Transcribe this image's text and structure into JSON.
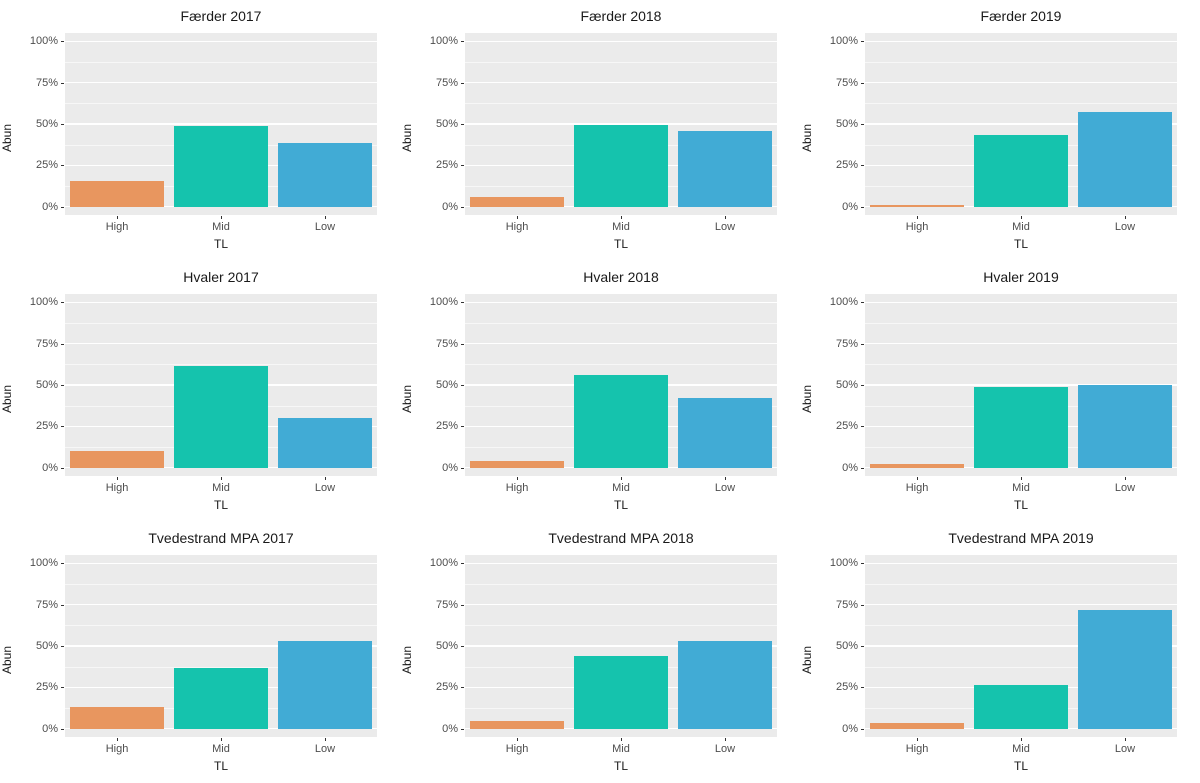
{
  "chart_data": {
    "type": "bar",
    "layout": "3x3 grid of small multiples",
    "categories": [
      "High",
      "Mid",
      "Low"
    ],
    "xlabel": "TL",
    "ylabel": "Abun",
    "ylim": [
      0,
      100
    ],
    "ytick_labels": [
      "0%",
      "25%",
      "50%",
      "75%",
      "100%"
    ],
    "ytick_values": [
      0,
      25,
      50,
      75,
      100
    ],
    "minor_gridline_values": [
      12.5,
      37.5,
      62.5,
      87.5
    ],
    "grid": "on",
    "legend": "none",
    "bar_colors": [
      "#E8965F",
      "#15C3AD",
      "#41ABD5"
    ],
    "panel_background": "#EBEBEB",
    "gridline_color": "#FFFFFF",
    "axis_text_color": "#4D4D4D",
    "title_color": "#1A1A1A",
    "panels": [
      {
        "title": "Færder 2017",
        "values": [
          15.5,
          48.5,
          38.5
        ]
      },
      {
        "title": "Færder 2018",
        "values": [
          6,
          49.5,
          46
        ]
      },
      {
        "title": "Færder 2019",
        "values": [
          1,
          43.5,
          57
        ]
      },
      {
        "title": "Hvaler 2017",
        "values": [
          10,
          61.5,
          30
        ]
      },
      {
        "title": "Hvaler 2018",
        "values": [
          4,
          56,
          42
        ]
      },
      {
        "title": "Hvaler 2019",
        "values": [
          2.5,
          49,
          50
        ]
      },
      {
        "title": "Tvedestrand MPA 2017",
        "values": [
          13,
          36.5,
          53
        ]
      },
      {
        "title": "Tvedestrand MPA 2018",
        "values": [
          4.5,
          44,
          53
        ]
      },
      {
        "title": "Tvedestrand MPA 2019",
        "values": [
          3.5,
          26.5,
          71.5
        ]
      }
    ]
  }
}
